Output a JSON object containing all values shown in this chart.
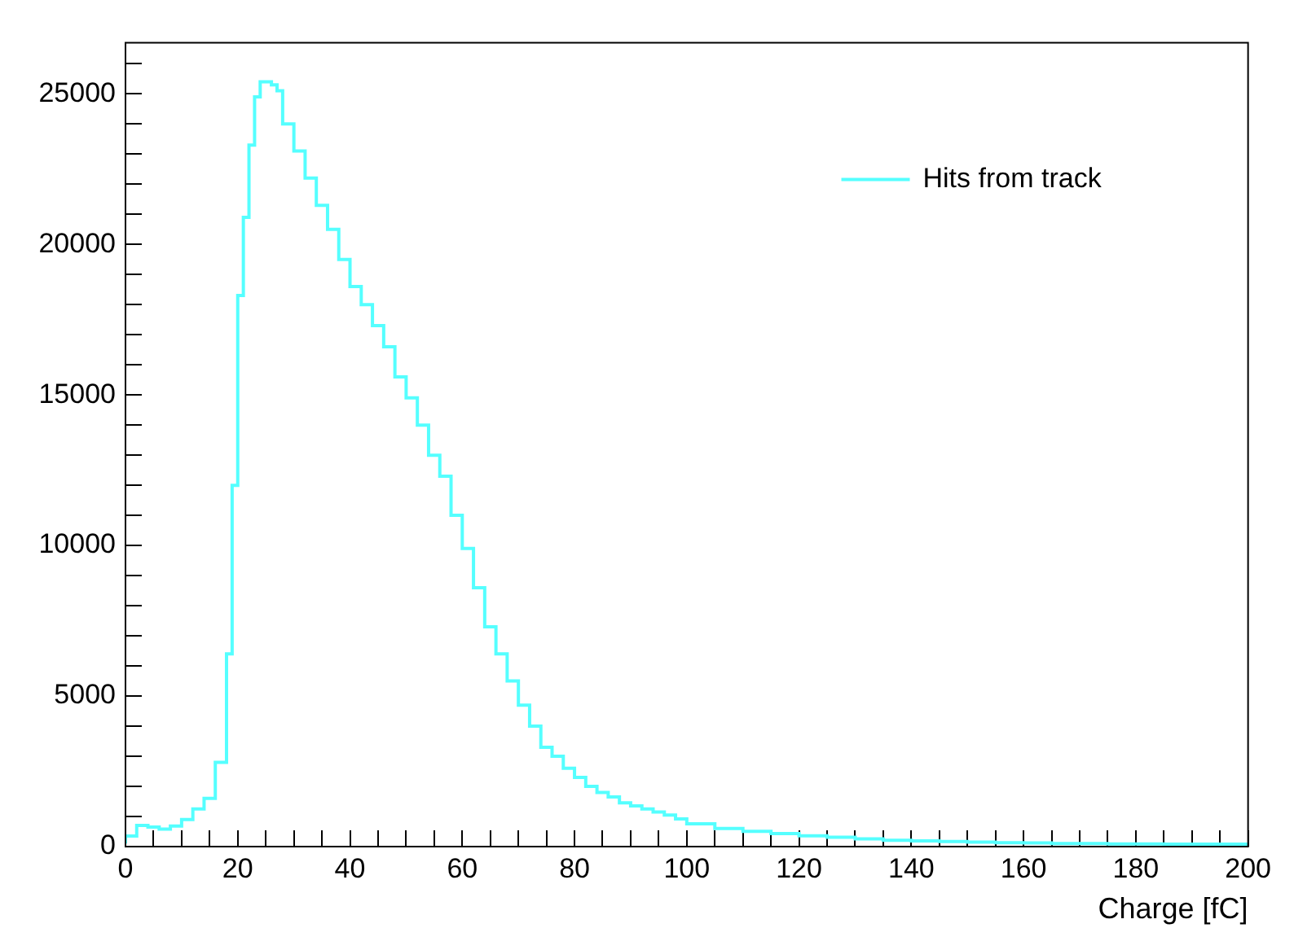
{
  "chart_data": {
    "type": "step",
    "xlabel": "Charge [fC]",
    "x": [
      0,
      2,
      4,
      6,
      8,
      10,
      12,
      14,
      16,
      18,
      19,
      20,
      21,
      22,
      23,
      24,
      25,
      26,
      27,
      28,
      30,
      32,
      34,
      36,
      38,
      40,
      42,
      44,
      46,
      48,
      50,
      52,
      54,
      56,
      58,
      60,
      62,
      64,
      66,
      68,
      70,
      72,
      74,
      76,
      78,
      80,
      82,
      84,
      86,
      88,
      90,
      92,
      94,
      96,
      98,
      100,
      105,
      110,
      115,
      120,
      125,
      130,
      135,
      140,
      145,
      150,
      155,
      160,
      165,
      170,
      175,
      180,
      185,
      190,
      195,
      200
    ],
    "series": [
      {
        "name": "Hits from track",
        "color": "#55ffff",
        "values": [
          100,
          350,
          700,
          650,
          580,
          680,
          900,
          1250,
          1600,
          2800,
          6400,
          12000,
          18300,
          20900,
          23300,
          24900,
          25400,
          25400,
          25300,
          25100,
          24000,
          23100,
          22200,
          21300,
          20500,
          19500,
          18600,
          18000,
          17300,
          16600,
          15600,
          14900,
          14000,
          13000,
          12300,
          11000,
          9900,
          8600,
          7300,
          6400,
          5500,
          4700,
          4000,
          3300,
          3000,
          2600,
          2300,
          2000,
          1800,
          1650,
          1450,
          1350,
          1250,
          1150,
          1050,
          920,
          760,
          600,
          510,
          430,
          360,
          310,
          260,
          210,
          190,
          170,
          150,
          130,
          120,
          100,
          100,
          90,
          90,
          80,
          80,
          80
        ]
      }
    ],
    "xlim": [
      0,
      200
    ],
    "xticks": [
      0,
      {
        "value": 5,
        "label": null
      },
      {
        "value": 10,
        "label": null
      },
      {
        "value": 15,
        "label": null
      },
      20,
      {
        "value": 25,
        "label": null
      },
      {
        "value": 30,
        "label": null
      },
      {
        "value": 35,
        "label": null
      },
      40,
      {
        "value": 45,
        "label": null
      },
      {
        "value": 50,
        "label": null
      },
      {
        "value": 55,
        "label": null
      },
      60,
      {
        "value": 65,
        "label": null
      },
      {
        "value": 70,
        "label": null
      },
      {
        "value": 75,
        "label": null
      },
      80,
      {
        "value": 85,
        "label": null
      },
      {
        "value": 90,
        "label": null
      },
      {
        "value": 95,
        "label": null
      },
      100,
      {
        "value": 105,
        "label": null
      },
      {
        "value": 110,
        "label": null
      },
      {
        "value": 115,
        "label": null
      },
      120,
      {
        "value": 125,
        "label": null
      },
      {
        "value": 130,
        "label": null
      },
      {
        "value": 135,
        "label": null
      },
      140,
      {
        "value": 145,
        "label": null
      },
      {
        "value": 150,
        "label": null
      },
      {
        "value": 155,
        "label": null
      },
      160,
      {
        "value": 165,
        "label": null
      },
      {
        "value": 170,
        "label": null
      },
      {
        "value": 175,
        "label": null
      },
      180,
      {
        "value": 185,
        "label": null
      },
      {
        "value": 190,
        "label": null
      },
      {
        "value": 195,
        "label": null
      },
      200
    ],
    "ylim": [
      0,
      26700
    ],
    "yticks": [
      0,
      {
        "value": 1000,
        "label": null
      },
      {
        "value": 2000,
        "label": null
      },
      {
        "value": 3000,
        "label": null
      },
      {
        "value": 4000,
        "label": null
      },
      5000,
      {
        "value": 6000,
        "label": null
      },
      {
        "value": 7000,
        "label": null
      },
      {
        "value": 8000,
        "label": null
      },
      {
        "value": 9000,
        "label": null
      },
      10000,
      {
        "value": 11000,
        "label": null
      },
      {
        "value": 12000,
        "label": null
      },
      {
        "value": 13000,
        "label": null
      },
      {
        "value": 14000,
        "label": null
      },
      15000,
      {
        "value": 16000,
        "label": null
      },
      {
        "value": 17000,
        "label": null
      },
      {
        "value": 18000,
        "label": null
      },
      {
        "value": 19000,
        "label": null
      },
      20000,
      {
        "value": 21000,
        "label": null
      },
      {
        "value": 22000,
        "label": null
      },
      {
        "value": 23000,
        "label": null
      },
      {
        "value": 24000,
        "label": null
      },
      25000,
      {
        "value": 26000,
        "label": null
      }
    ],
    "grid": false,
    "legend": "top right"
  }
}
